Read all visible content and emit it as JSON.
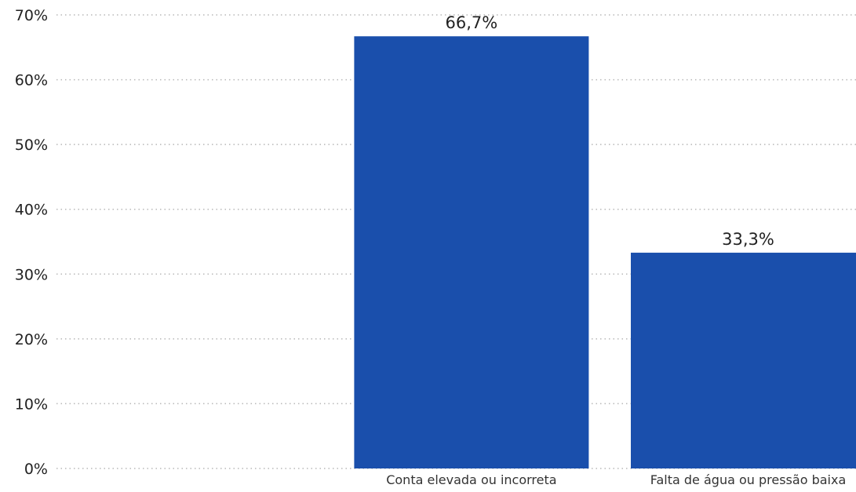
{
  "chart_data": {
    "type": "bar",
    "categories": [
      "",
      "Conta elevada ou incorreta",
      "Falta de água ou pressão baixa"
    ],
    "values": [
      null,
      66.7,
      33.3
    ],
    "data_labels": [
      "",
      "66,7%",
      "33,3%"
    ],
    "ylim": [
      0,
      70
    ],
    "yticks": [
      0,
      10,
      20,
      30,
      40,
      50,
      60,
      70
    ],
    "ytick_labels": [
      "0%",
      "10%",
      "20%",
      "30%",
      "40%",
      "50%",
      "60%",
      "70%"
    ],
    "title": "",
    "xlabel": "",
    "ylabel": "",
    "grid": true,
    "bar_color": "#1a4fac",
    "grid_color": "#b8b8b8"
  }
}
